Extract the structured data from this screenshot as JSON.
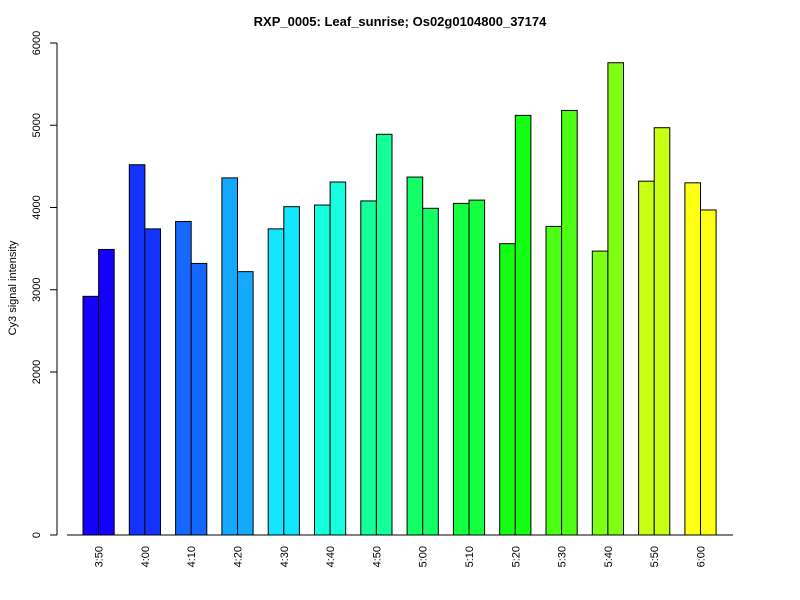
{
  "chart_data": {
    "type": "bar",
    "title": "RXP_0005: Leaf_sunrise; Os02g0104800_37174",
    "xlabel": "",
    "ylabel": "Cy3 signal intensity",
    "ylim": [
      0,
      6000
    ],
    "y_ticks": [
      "0",
      "2000",
      "3000",
      "4000",
      "5000",
      "6000"
    ],
    "categories": [
      "3:50",
      "4:00",
      "4:10",
      "4:20",
      "4:30",
      "4:40",
      "4:50",
      "5:00",
      "5:10",
      "5:20",
      "5:30",
      "5:40",
      "5:50",
      "6:00"
    ],
    "series": [
      {
        "values": [
          2920,
          4520,
          3830,
          4360,
          3740,
          4030,
          4080,
          4370,
          4050,
          3560,
          3770,
          3470,
          4320,
          4300
        ]
      },
      {
        "values": [
          3490,
          3740,
          3320,
          3220,
          4010,
          4310,
          4890,
          3990,
          4090,
          5120,
          5180,
          5760,
          4970,
          3970
        ]
      }
    ],
    "colors": [
      "#1400FF",
      "#1433FF",
      "#1467FF",
      "#14A8FF",
      "#14E6FF",
      "#14FFDD",
      "#14FF99",
      "#14FF66",
      "#14FF40",
      "#14FF14",
      "#4DFF14",
      "#80FF14",
      "#C8FF14",
      "#FFFF14"
    ],
    "grid": false,
    "legend": "none"
  }
}
